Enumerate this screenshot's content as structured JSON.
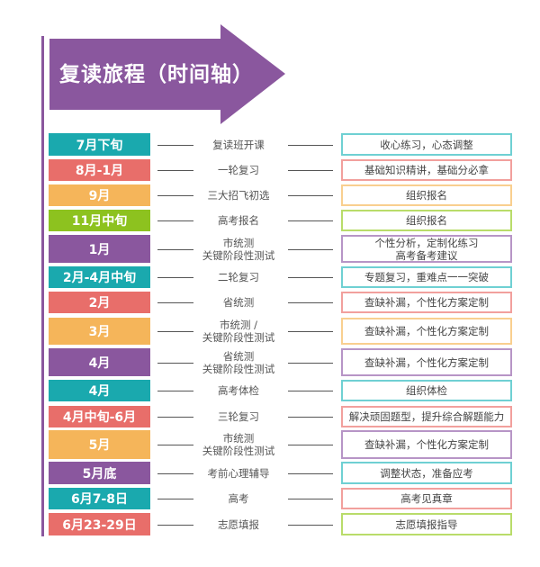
{
  "title": "复读旅程（时间轴）",
  "colors": {
    "teal": "#1aa9ae",
    "red": "#e86e6a",
    "orange": "#f5b55a",
    "green": "#8dc21f",
    "purple": "#8a579e"
  },
  "rows": [
    {
      "date": "7月下旬",
      "event": [
        "复读班开课"
      ],
      "task": [
        "收心练习，心态调整"
      ],
      "color": "teal",
      "border": "teal"
    },
    {
      "date": "8月-1月",
      "event": [
        "一轮复习"
      ],
      "task": [
        "基础知识精讲，基础分必拿"
      ],
      "color": "red",
      "border": "red"
    },
    {
      "date": "9月",
      "event": [
        "三大招飞初选"
      ],
      "task": [
        "组织报名"
      ],
      "color": "orange",
      "border": "orange"
    },
    {
      "date": "11月中旬",
      "event": [
        "高考报名"
      ],
      "task": [
        "组织报名"
      ],
      "color": "green",
      "border": "green"
    },
    {
      "date": "1月",
      "event": [
        "市统测",
        "关键阶段性测试"
      ],
      "task": [
        "个性分析，定制化练习",
        "高考备考建议"
      ],
      "color": "purple",
      "border": "purple"
    },
    {
      "date": "2月-4月中旬",
      "event": [
        "二轮复习"
      ],
      "task": [
        "专题复习，重难点一一突破"
      ],
      "color": "teal",
      "border": "teal"
    },
    {
      "date": "2月",
      "event": [
        "省统测"
      ],
      "task": [
        "查缺补漏，个性化方案定制"
      ],
      "color": "red",
      "border": "red"
    },
    {
      "date": "3月",
      "event": [
        "市统测 /",
        "关键阶段性测试"
      ],
      "task": [
        "查缺补漏，个性化方案定制"
      ],
      "color": "orange",
      "border": "orange"
    },
    {
      "date": "4月",
      "event": [
        "省统测",
        "关键阶段性测试"
      ],
      "task": [
        "查缺补漏，个性化方案定制"
      ],
      "color": "purple",
      "border": "purple"
    },
    {
      "date": "4月",
      "event": [
        "高考体检"
      ],
      "task": [
        "组织体检"
      ],
      "color": "teal",
      "border": "teal"
    },
    {
      "date": "4月中旬-6月",
      "event": [
        "三轮复习"
      ],
      "task": [
        "解决顽固题型，提升综合解题能力"
      ],
      "color": "red",
      "border": "red"
    },
    {
      "date": "5月",
      "event": [
        "市统测",
        "关键阶段性测试"
      ],
      "task": [
        "查缺补漏，个性化方案定制"
      ],
      "color": "orange",
      "border": "purple"
    },
    {
      "date": "5月底",
      "event": [
        "考前心理辅导"
      ],
      "task": [
        "调整状态，准备应考"
      ],
      "color": "purple",
      "border": "teal"
    },
    {
      "date": "6月7-8日",
      "event": [
        "高考"
      ],
      "task": [
        "高考见真章"
      ],
      "color": "teal",
      "border": "red"
    },
    {
      "date": "6月23-29日",
      "event": [
        "志愿填报"
      ],
      "task": [
        "志愿填报指导"
      ],
      "color": "red",
      "border": "green"
    }
  ]
}
